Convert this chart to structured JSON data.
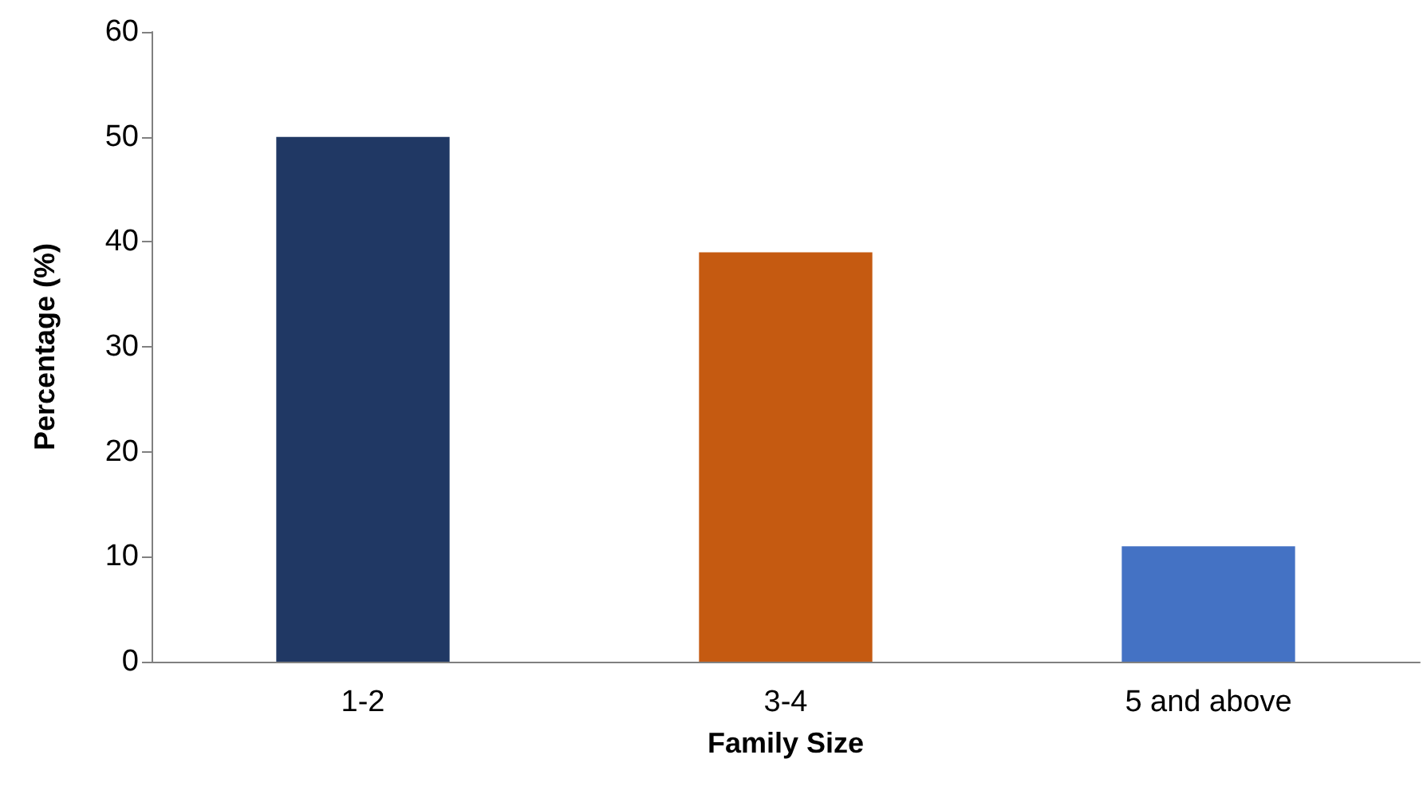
{
  "chart_data": {
    "type": "bar",
    "xlabel": "Family Size",
    "ylabel": "Percentage (%)",
    "categories": [
      "1-2",
      "3-4",
      "5 and above"
    ],
    "values": [
      50,
      39,
      11
    ],
    "colors": [
      "#203864",
      "#c55a11",
      "#4472c4"
    ],
    "ylim": [
      0,
      60
    ],
    "yticks": [
      0,
      10,
      20,
      30,
      40,
      50,
      60
    ],
    "grid": false
  }
}
